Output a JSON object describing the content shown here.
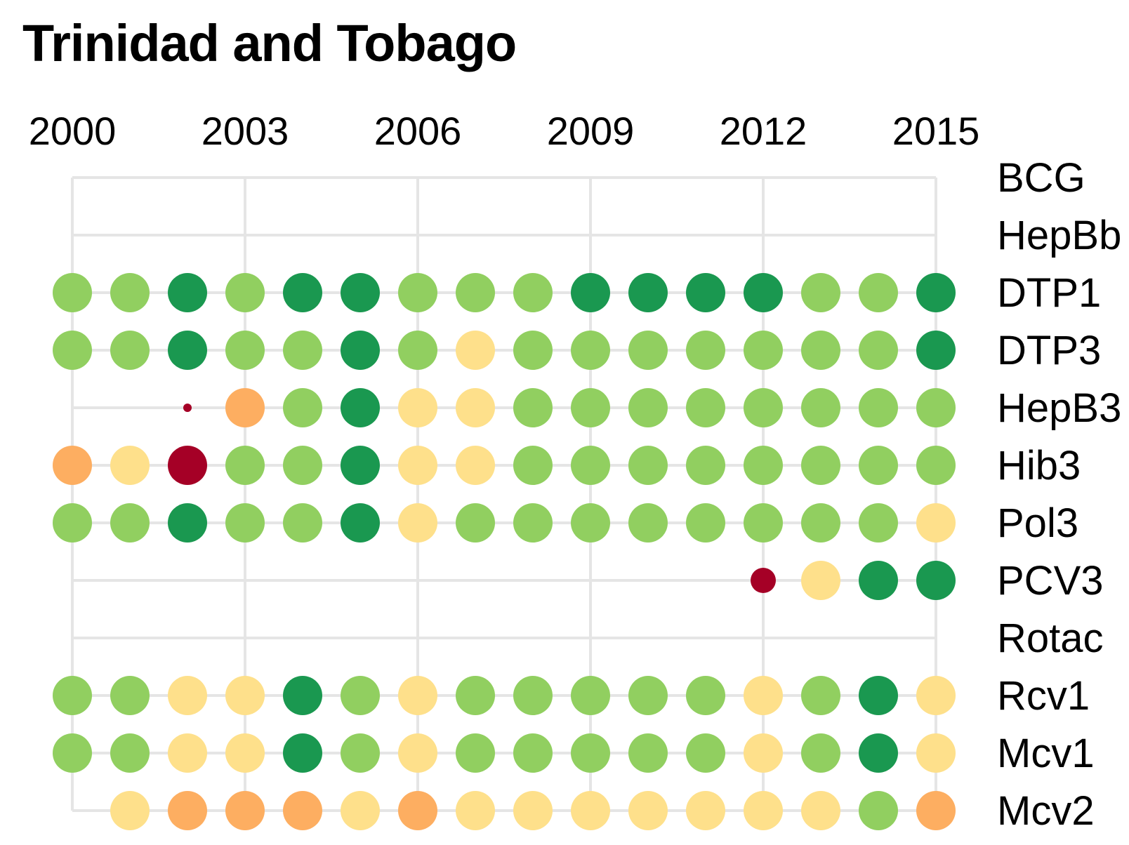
{
  "chart_data": {
    "type": "scatter",
    "title": "Trinidad and Tobago",
    "x": [
      2000,
      2001,
      2002,
      2003,
      2004,
      2005,
      2006,
      2007,
      2008,
      2009,
      2010,
      2011,
      2012,
      2013,
      2014,
      2015
    ],
    "x_tick_labels": [
      "2000",
      "2003",
      "2006",
      "2009",
      "2012",
      "2015"
    ],
    "grid": true,
    "color_scale": {
      "red": "#a50026",
      "orange": "#fdae61",
      "yellow": "#fee08b",
      "light_green": "#91cf60",
      "dark_green": "#1a9850"
    },
    "rows": [
      {
        "name": "BCG",
        "start": null,
        "points": []
      },
      {
        "name": "HepBb",
        "start": null,
        "points": []
      },
      {
        "name": "DTP1",
        "start": 2000,
        "points": [
          {
            "year": 2000,
            "color": "light_green",
            "size": "large"
          },
          {
            "year": 2001,
            "color": "light_green",
            "size": "large"
          },
          {
            "year": 2002,
            "color": "dark_green",
            "size": "large"
          },
          {
            "year": 2003,
            "color": "light_green",
            "size": "large"
          },
          {
            "year": 2004,
            "color": "dark_green",
            "size": "large"
          },
          {
            "year": 2005,
            "color": "dark_green",
            "size": "large"
          },
          {
            "year": 2006,
            "color": "light_green",
            "size": "large"
          },
          {
            "year": 2007,
            "color": "light_green",
            "size": "large"
          },
          {
            "year": 2008,
            "color": "light_green",
            "size": "large"
          },
          {
            "year": 2009,
            "color": "dark_green",
            "size": "large"
          },
          {
            "year": 2010,
            "color": "dark_green",
            "size": "large"
          },
          {
            "year": 2011,
            "color": "dark_green",
            "size": "large"
          },
          {
            "year": 2012,
            "color": "dark_green",
            "size": "large"
          },
          {
            "year": 2013,
            "color": "light_green",
            "size": "large"
          },
          {
            "year": 2014,
            "color": "light_green",
            "size": "large"
          },
          {
            "year": 2015,
            "color": "dark_green",
            "size": "large"
          }
        ]
      },
      {
        "name": "DTP3",
        "start": 2000,
        "points": [
          {
            "year": 2000,
            "color": "light_green",
            "size": "large"
          },
          {
            "year": 2001,
            "color": "light_green",
            "size": "large"
          },
          {
            "year": 2002,
            "color": "dark_green",
            "size": "large"
          },
          {
            "year": 2003,
            "color": "light_green",
            "size": "large"
          },
          {
            "year": 2004,
            "color": "light_green",
            "size": "large"
          },
          {
            "year": 2005,
            "color": "dark_green",
            "size": "large"
          },
          {
            "year": 2006,
            "color": "light_green",
            "size": "large"
          },
          {
            "year": 2007,
            "color": "yellow",
            "size": "large"
          },
          {
            "year": 2008,
            "color": "light_green",
            "size": "large"
          },
          {
            "year": 2009,
            "color": "light_green",
            "size": "large"
          },
          {
            "year": 2010,
            "color": "light_green",
            "size": "large"
          },
          {
            "year": 2011,
            "color": "light_green",
            "size": "large"
          },
          {
            "year": 2012,
            "color": "light_green",
            "size": "large"
          },
          {
            "year": 2013,
            "color": "light_green",
            "size": "large"
          },
          {
            "year": 2014,
            "color": "light_green",
            "size": "large"
          },
          {
            "year": 2015,
            "color": "dark_green",
            "size": "large"
          }
        ]
      },
      {
        "name": "HepB3",
        "start": 2000,
        "points": [
          {
            "year": 2002,
            "color": "red",
            "size": "tiny"
          },
          {
            "year": 2003,
            "color": "orange",
            "size": "large"
          },
          {
            "year": 2004,
            "color": "light_green",
            "size": "large"
          },
          {
            "year": 2005,
            "color": "dark_green",
            "size": "large"
          },
          {
            "year": 2006,
            "color": "yellow",
            "size": "large"
          },
          {
            "year": 2007,
            "color": "yellow",
            "size": "large"
          },
          {
            "year": 2008,
            "color": "light_green",
            "size": "large"
          },
          {
            "year": 2009,
            "color": "light_green",
            "size": "large"
          },
          {
            "year": 2010,
            "color": "light_green",
            "size": "large"
          },
          {
            "year": 2011,
            "color": "light_green",
            "size": "large"
          },
          {
            "year": 2012,
            "color": "light_green",
            "size": "large"
          },
          {
            "year": 2013,
            "color": "light_green",
            "size": "large"
          },
          {
            "year": 2014,
            "color": "light_green",
            "size": "large"
          },
          {
            "year": 2015,
            "color": "light_green",
            "size": "large"
          }
        ]
      },
      {
        "name": "Hib3",
        "start": 2000,
        "points": [
          {
            "year": 2000,
            "color": "orange",
            "size": "large"
          },
          {
            "year": 2001,
            "color": "yellow",
            "size": "large"
          },
          {
            "year": 2002,
            "color": "red",
            "size": "large"
          },
          {
            "year": 2003,
            "color": "light_green",
            "size": "large"
          },
          {
            "year": 2004,
            "color": "light_green",
            "size": "large"
          },
          {
            "year": 2005,
            "color": "dark_green",
            "size": "large"
          },
          {
            "year": 2006,
            "color": "yellow",
            "size": "large"
          },
          {
            "year": 2007,
            "color": "yellow",
            "size": "large"
          },
          {
            "year": 2008,
            "color": "light_green",
            "size": "large"
          },
          {
            "year": 2009,
            "color": "light_green",
            "size": "large"
          },
          {
            "year": 2010,
            "color": "light_green",
            "size": "large"
          },
          {
            "year": 2011,
            "color": "light_green",
            "size": "large"
          },
          {
            "year": 2012,
            "color": "light_green",
            "size": "large"
          },
          {
            "year": 2013,
            "color": "light_green",
            "size": "large"
          },
          {
            "year": 2014,
            "color": "light_green",
            "size": "large"
          },
          {
            "year": 2015,
            "color": "light_green",
            "size": "large"
          }
        ]
      },
      {
        "name": "Pol3",
        "start": 2000,
        "points": [
          {
            "year": 2000,
            "color": "light_green",
            "size": "large"
          },
          {
            "year": 2001,
            "color": "light_green",
            "size": "large"
          },
          {
            "year": 2002,
            "color": "dark_green",
            "size": "large"
          },
          {
            "year": 2003,
            "color": "light_green",
            "size": "large"
          },
          {
            "year": 2004,
            "color": "light_green",
            "size": "large"
          },
          {
            "year": 2005,
            "color": "dark_green",
            "size": "large"
          },
          {
            "year": 2006,
            "color": "yellow",
            "size": "large"
          },
          {
            "year": 2007,
            "color": "light_green",
            "size": "large"
          },
          {
            "year": 2008,
            "color": "light_green",
            "size": "large"
          },
          {
            "year": 2009,
            "color": "light_green",
            "size": "large"
          },
          {
            "year": 2010,
            "color": "light_green",
            "size": "large"
          },
          {
            "year": 2011,
            "color": "light_green",
            "size": "large"
          },
          {
            "year": 2012,
            "color": "light_green",
            "size": "large"
          },
          {
            "year": 2013,
            "color": "light_green",
            "size": "large"
          },
          {
            "year": 2014,
            "color": "light_green",
            "size": "large"
          },
          {
            "year": 2015,
            "color": "yellow",
            "size": "large"
          }
        ]
      },
      {
        "name": "PCV3",
        "start": 2000,
        "points": [
          {
            "year": 2012,
            "color": "red",
            "size": "small"
          },
          {
            "year": 2013,
            "color": "yellow",
            "size": "large"
          },
          {
            "year": 2014,
            "color": "dark_green",
            "size": "large"
          },
          {
            "year": 2015,
            "color": "dark_green",
            "size": "large"
          }
        ]
      },
      {
        "name": "Rotac",
        "start": null,
        "points": []
      },
      {
        "name": "Rcv1",
        "start": 2000,
        "points": [
          {
            "year": 2000,
            "color": "light_green",
            "size": "large"
          },
          {
            "year": 2001,
            "color": "light_green",
            "size": "large"
          },
          {
            "year": 2002,
            "color": "yellow",
            "size": "large"
          },
          {
            "year": 2003,
            "color": "yellow",
            "size": "large"
          },
          {
            "year": 2004,
            "color": "dark_green",
            "size": "large"
          },
          {
            "year": 2005,
            "color": "light_green",
            "size": "large"
          },
          {
            "year": 2006,
            "color": "yellow",
            "size": "large"
          },
          {
            "year": 2007,
            "color": "light_green",
            "size": "large"
          },
          {
            "year": 2008,
            "color": "light_green",
            "size": "large"
          },
          {
            "year": 2009,
            "color": "light_green",
            "size": "large"
          },
          {
            "year": 2010,
            "color": "light_green",
            "size": "large"
          },
          {
            "year": 2011,
            "color": "light_green",
            "size": "large"
          },
          {
            "year": 2012,
            "color": "yellow",
            "size": "large"
          },
          {
            "year": 2013,
            "color": "light_green",
            "size": "large"
          },
          {
            "year": 2014,
            "color": "dark_green",
            "size": "large"
          },
          {
            "year": 2015,
            "color": "yellow",
            "size": "large"
          }
        ]
      },
      {
        "name": "Mcv1",
        "start": 2000,
        "points": [
          {
            "year": 2000,
            "color": "light_green",
            "size": "large"
          },
          {
            "year": 2001,
            "color": "light_green",
            "size": "large"
          },
          {
            "year": 2002,
            "color": "yellow",
            "size": "large"
          },
          {
            "year": 2003,
            "color": "yellow",
            "size": "large"
          },
          {
            "year": 2004,
            "color": "dark_green",
            "size": "large"
          },
          {
            "year": 2005,
            "color": "light_green",
            "size": "large"
          },
          {
            "year": 2006,
            "color": "yellow",
            "size": "large"
          },
          {
            "year": 2007,
            "color": "light_green",
            "size": "large"
          },
          {
            "year": 2008,
            "color": "light_green",
            "size": "large"
          },
          {
            "year": 2009,
            "color": "light_green",
            "size": "large"
          },
          {
            "year": 2010,
            "color": "light_green",
            "size": "large"
          },
          {
            "year": 2011,
            "color": "light_green",
            "size": "large"
          },
          {
            "year": 2012,
            "color": "yellow",
            "size": "large"
          },
          {
            "year": 2013,
            "color": "light_green",
            "size": "large"
          },
          {
            "year": 2014,
            "color": "dark_green",
            "size": "large"
          },
          {
            "year": 2015,
            "color": "yellow",
            "size": "large"
          }
        ]
      },
      {
        "name": "Mcv2",
        "start": 2000,
        "points": [
          {
            "year": 2001,
            "color": "yellow",
            "size": "large"
          },
          {
            "year": 2002,
            "color": "orange",
            "size": "large"
          },
          {
            "year": 2003,
            "color": "orange",
            "size": "large"
          },
          {
            "year": 2004,
            "color": "orange",
            "size": "large"
          },
          {
            "year": 2005,
            "color": "yellow",
            "size": "large"
          },
          {
            "year": 2006,
            "color": "orange",
            "size": "large"
          },
          {
            "year": 2007,
            "color": "yellow",
            "size": "large"
          },
          {
            "year": 2008,
            "color": "yellow",
            "size": "large"
          },
          {
            "year": 2009,
            "color": "yellow",
            "size": "large"
          },
          {
            "year": 2010,
            "color": "yellow",
            "size": "large"
          },
          {
            "year": 2011,
            "color": "yellow",
            "size": "large"
          },
          {
            "year": 2012,
            "color": "yellow",
            "size": "large"
          },
          {
            "year": 2013,
            "color": "yellow",
            "size": "large"
          },
          {
            "year": 2014,
            "color": "light_green",
            "size": "large"
          },
          {
            "year": 2015,
            "color": "orange",
            "size": "large"
          }
        ]
      }
    ]
  }
}
